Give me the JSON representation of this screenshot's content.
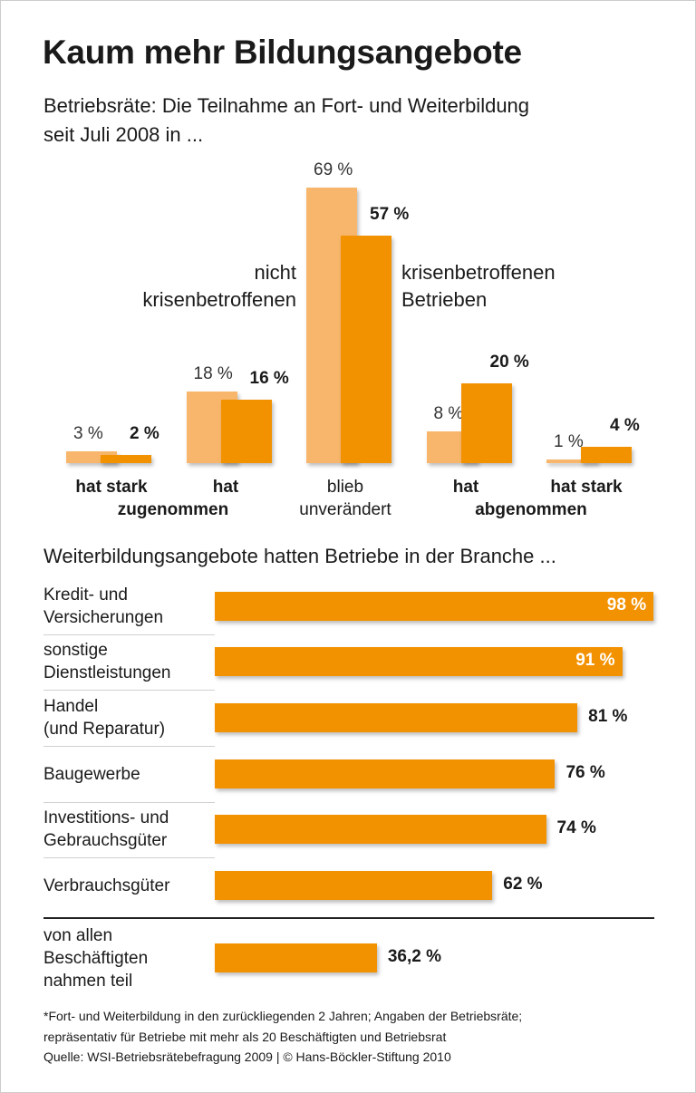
{
  "title": "Kaum mehr Bildungsangebote",
  "subtitle_lines": [
    "Betriebsräte: Die Teilnahme an Fort- und Weiterbildung",
    "seit Juli 2008 in ..."
  ],
  "colors": {
    "light": "#f7b66b",
    "dark": "#f39200"
  },
  "chart_data": [
    {
      "type": "bar",
      "categories": [
        "hat stark zugenommen",
        "hat zugenommen",
        "blieb unverändert",
        "hat abgenommen",
        "hat stark abgenommen"
      ],
      "category_label_lines": [
        [
          "hat stark",
          ""
        ],
        [
          "hat",
          "zugenommen"
        ],
        [
          "blieb",
          "unverändert"
        ],
        [
          "hat",
          "abgenommen"
        ],
        [
          "hat stark",
          ""
        ]
      ],
      "series": [
        {
          "name": "nicht krisenbetroffenen",
          "name_lines": [
            "nicht",
            "krisenbetroffenen"
          ],
          "values": [
            3,
            18,
            69,
            8,
            1
          ],
          "labels": [
            "3 %",
            "18 %",
            "69 %",
            "8 %",
            "1 %"
          ]
        },
        {
          "name": "krisenbetroffenen Betrieben",
          "name_lines": [
            "krisenbetroffenen",
            "Betrieben"
          ],
          "values": [
            2,
            16,
            57,
            20,
            4
          ],
          "labels": [
            "2 %",
            "16 %",
            "57 %",
            "20 %",
            "4 %"
          ]
        }
      ],
      "unit": "%"
    },
    {
      "type": "bar",
      "orientation": "horizontal",
      "title": "Weiterbildungsangebote hatten Betriebe in der Branche ...",
      "categories": [
        [
          "Kredit- und",
          "Versicherungen"
        ],
        [
          "sonstige",
          "Dienstleistungen"
        ],
        [
          "Handel",
          "(und Reparatur)"
        ],
        [
          "Baugewerbe"
        ],
        [
          "Investitions- und",
          "Gebrauchsgüter"
        ],
        [
          "Verbrauchsgüter"
        ],
        [
          "von allen",
          "Beschäftigten",
          "nahmen teil"
        ]
      ],
      "values": [
        98,
        91,
        81,
        76,
        74,
        62,
        36.2
      ],
      "labels": [
        "98 %",
        "91 %",
        "81 %",
        "76 %",
        "74 %",
        "62 %",
        "36,2 %"
      ]
    }
  ],
  "footer": [
    "*Fort- und Weiterbildung in den zurückliegenden 2 Jahren;  Angaben der Betriebsräte;",
    "repräsentativ für Betriebe mit mehr als 20 Beschäftigten und Betriebsrat",
    "Quelle: WSI-Betriebsrätebefragung 2009 | © Hans-Böckler-Stiftung 2010"
  ]
}
